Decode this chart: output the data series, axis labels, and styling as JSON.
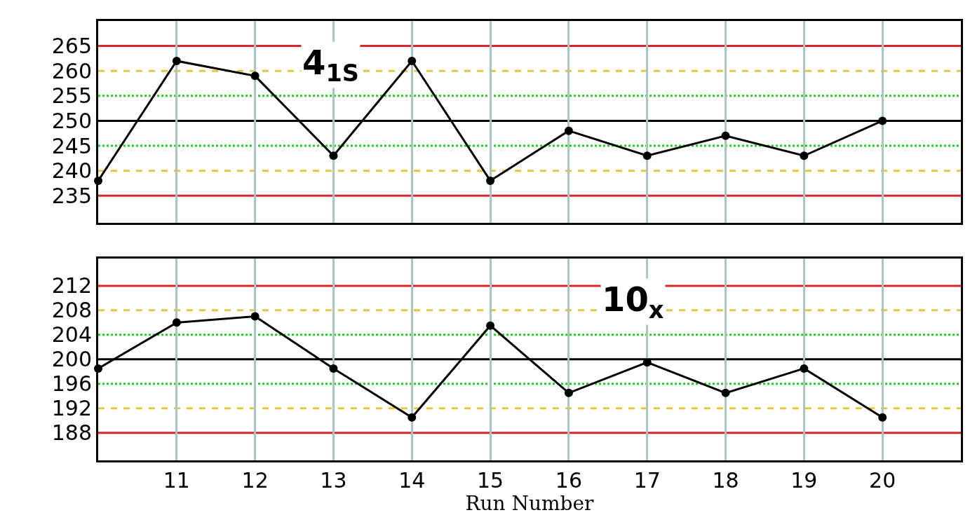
{
  "chart_data": [
    {
      "type": "line",
      "x": [
        10,
        11,
        12,
        13,
        14,
        15,
        16,
        17,
        18,
        19,
        20
      ],
      "series": [
        {
          "color": "#000000",
          "values": [
            238,
            262,
            259,
            243,
            262,
            238,
            248,
            243,
            247,
            243,
            250
          ]
        }
      ],
      "xlim": [
        10,
        21
      ],
      "xticks": [
        11,
        12,
        13,
        14,
        15,
        16,
        17,
        18,
        19,
        20
      ],
      "ylim": [
        229.5,
        270
      ],
      "yticks": [
        235,
        240,
        245,
        250,
        255,
        260,
        265
      ],
      "ref_lines": [
        {
          "axis": "y",
          "value": 265,
          "color": "#d62828",
          "line_style": "solid"
        },
        {
          "axis": "y",
          "value": 260,
          "color": "#e6c63a",
          "line_style": "dashed"
        },
        {
          "axis": "y",
          "value": 255,
          "color": "#22d022",
          "line_style": "dotted"
        },
        {
          "axis": "y",
          "value": 250,
          "color": "#000000",
          "line_style": "solid"
        },
        {
          "axis": "y",
          "value": 245,
          "color": "#22d022",
          "line_style": "dotted"
        },
        {
          "axis": "y",
          "value": 240,
          "color": "#e6c63a",
          "line_style": "dashed"
        },
        {
          "axis": "y",
          "value": 235,
          "color": "#d62828",
          "line_style": "solid"
        }
      ],
      "annotations": [
        "4$_{1S}$"
      ],
      "grid": "x",
      "marker": "circle",
      "line_style": "solid",
      "tick_labels": "y"
    },
    {
      "type": "line",
      "x": [
        10,
        11,
        12,
        13,
        14,
        15,
        16,
        17,
        18,
        19,
        20
      ],
      "series": [
        {
          "color": "#000000",
          "values": [
            198.5,
            206,
            207,
            198.5,
            190.5,
            205.5,
            194.5,
            199.5,
            194.5,
            198.5,
            190.5
          ]
        }
      ],
      "xlim": [
        10,
        21
      ],
      "xticks": [
        11,
        12,
        13,
        14,
        15,
        16,
        17,
        18,
        19,
        20
      ],
      "ylim": [
        183.5,
        216.5
      ],
      "yticks": [
        188,
        192,
        196,
        200,
        204,
        208,
        212
      ],
      "ref_lines": [
        {
          "axis": "y",
          "value": 212,
          "color": "#d62828",
          "line_style": "solid"
        },
        {
          "axis": "y",
          "value": 208,
          "color": "#e6c63a",
          "line_style": "dashed"
        },
        {
          "axis": "y",
          "value": 204,
          "color": "#22d022",
          "line_style": "dotted"
        },
        {
          "axis": "y",
          "value": 200,
          "color": "#000000",
          "line_style": "solid"
        },
        {
          "axis": "y",
          "value": 196,
          "color": "#22d022",
          "line_style": "dotted"
        },
        {
          "axis": "y",
          "value": 192,
          "color": "#e6c63a",
          "line_style": "dashed"
        },
        {
          "axis": "y",
          "value": 188,
          "color": "#d62828",
          "line_style": "solid"
        }
      ],
      "annotations": [
        "10$_{x}$"
      ],
      "xlabel": "Run Number",
      "grid": "x",
      "marker": "circle",
      "line_style": "solid"
    }
  ]
}
